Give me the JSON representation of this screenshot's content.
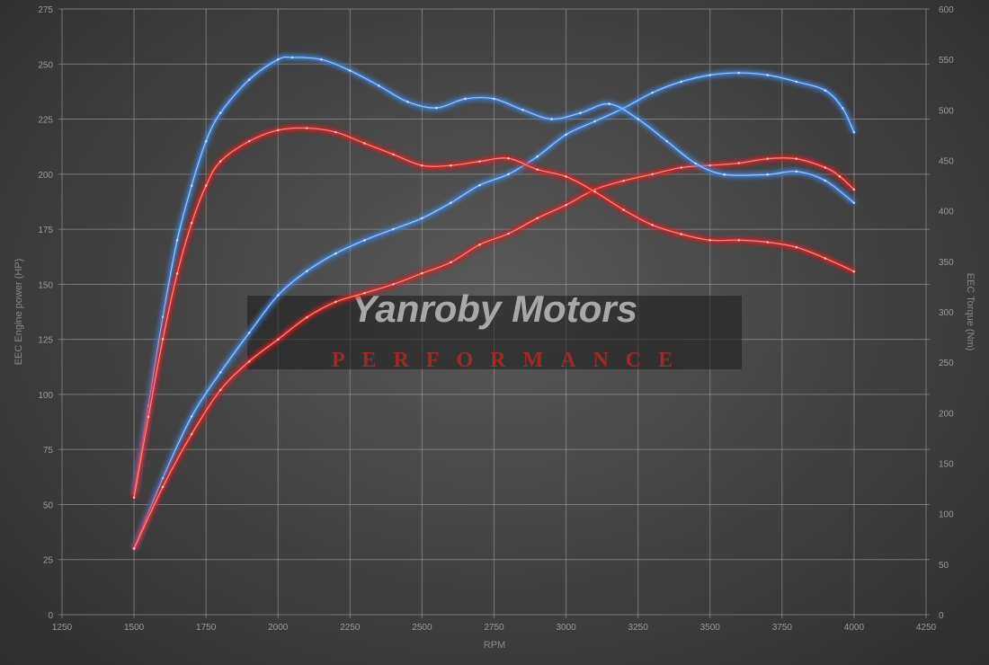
{
  "chart_data": {
    "type": "line",
    "title": "",
    "xlabel": "RPM",
    "ylabel_left": "EEC Engine power (HP)",
    "ylabel_right": "EEC Torque (Nm)",
    "xlim": [
      1250,
      4250
    ],
    "ylim_left": [
      0,
      275
    ],
    "ylim_right": [
      0,
      600
    ],
    "x_ticks": [
      1250,
      1500,
      1750,
      2000,
      2250,
      2500,
      2750,
      3000,
      3250,
      3500,
      3750,
      4000,
      4250
    ],
    "y_left_ticks": [
      0,
      25,
      50,
      75,
      100,
      125,
      150,
      175,
      200,
      225,
      250,
      275
    ],
    "y_right_ticks": [
      0,
      50,
      100,
      150,
      200,
      250,
      300,
      350,
      400,
      450,
      500,
      550,
      600
    ],
    "grid": true,
    "legend": "none",
    "series": [
      {
        "axis": "left",
        "color": "#3f86e0",
        "points": [
          [
            1500,
            30
          ],
          [
            1600,
            62
          ],
          [
            1700,
            90
          ],
          [
            1800,
            110
          ],
          [
            1900,
            128
          ],
          [
            2000,
            145
          ],
          [
            2100,
            156
          ],
          [
            2200,
            164
          ],
          [
            2300,
            170
          ],
          [
            2400,
            175
          ],
          [
            2500,
            180
          ],
          [
            2600,
            187
          ],
          [
            2700,
            195
          ],
          [
            2800,
            200
          ],
          [
            2900,
            208
          ],
          [
            3000,
            218
          ],
          [
            3100,
            224
          ],
          [
            3200,
            230
          ],
          [
            3300,
            237
          ],
          [
            3400,
            242
          ],
          [
            3500,
            245
          ],
          [
            3600,
            246
          ],
          [
            3700,
            245
          ],
          [
            3800,
            242
          ],
          [
            3900,
            238
          ],
          [
            3960,
            230
          ],
          [
            4000,
            219
          ]
        ]
      },
      {
        "axis": "left",
        "color": "#e02424",
        "points": [
          [
            1500,
            30
          ],
          [
            1600,
            58
          ],
          [
            1700,
            82
          ],
          [
            1800,
            102
          ],
          [
            1900,
            115
          ],
          [
            2000,
            125
          ],
          [
            2100,
            135
          ],
          [
            2200,
            142
          ],
          [
            2300,
            146
          ],
          [
            2400,
            150
          ],
          [
            2500,
            155
          ],
          [
            2600,
            160
          ],
          [
            2700,
            168
          ],
          [
            2800,
            173
          ],
          [
            2900,
            180
          ],
          [
            3000,
            186
          ],
          [
            3100,
            193
          ],
          [
            3200,
            197
          ],
          [
            3300,
            200
          ],
          [
            3400,
            203
          ],
          [
            3500,
            204
          ],
          [
            3600,
            205
          ],
          [
            3700,
            207
          ],
          [
            3800,
            207
          ],
          [
            3900,
            203
          ],
          [
            3950,
            199
          ],
          [
            4000,
            193
          ]
        ]
      },
      {
        "axis": "right",
        "color": "#3f86e0",
        "points": [
          [
            1500,
            120
          ],
          [
            1550,
            207
          ],
          [
            1600,
            295
          ],
          [
            1650,
            371
          ],
          [
            1700,
            425
          ],
          [
            1750,
            469
          ],
          [
            1800,
            497
          ],
          [
            1900,
            530
          ],
          [
            2000,
            550
          ],
          [
            2050,
            552
          ],
          [
            2150,
            550
          ],
          [
            2250,
            539
          ],
          [
            2350,
            524
          ],
          [
            2450,
            508
          ],
          [
            2550,
            502
          ],
          [
            2650,
            511
          ],
          [
            2750,
            511
          ],
          [
            2850,
            500
          ],
          [
            2950,
            491
          ],
          [
            3050,
            497
          ],
          [
            3150,
            506
          ],
          [
            3250,
            491
          ],
          [
            3350,
            469
          ],
          [
            3450,
            447
          ],
          [
            3550,
            436
          ],
          [
            3700,
            436
          ],
          [
            3800,
            439
          ],
          [
            3900,
            430
          ],
          [
            4000,
            408
          ]
        ]
      },
      {
        "axis": "right",
        "color": "#e02424",
        "points": [
          [
            1500,
            116
          ],
          [
            1550,
            196
          ],
          [
            1600,
            273
          ],
          [
            1650,
            338
          ],
          [
            1700,
            388
          ],
          [
            1750,
            425
          ],
          [
            1800,
            449
          ],
          [
            1900,
            469
          ],
          [
            2000,
            480
          ],
          [
            2100,
            482
          ],
          [
            2200,
            478
          ],
          [
            2300,
            467
          ],
          [
            2400,
            456
          ],
          [
            2500,
            445
          ],
          [
            2600,
            445
          ],
          [
            2700,
            449
          ],
          [
            2800,
            452
          ],
          [
            2900,
            441
          ],
          [
            3000,
            434
          ],
          [
            3100,
            419
          ],
          [
            3200,
            401
          ],
          [
            3300,
            386
          ],
          [
            3400,
            377
          ],
          [
            3500,
            371
          ],
          [
            3600,
            371
          ],
          [
            3700,
            369
          ],
          [
            3800,
            364
          ],
          [
            3900,
            353
          ],
          [
            4000,
            340
          ]
        ]
      }
    ]
  },
  "watermark": {
    "brand": "Yanroby Motors",
    "tagline": "PERFORMANCE"
  }
}
